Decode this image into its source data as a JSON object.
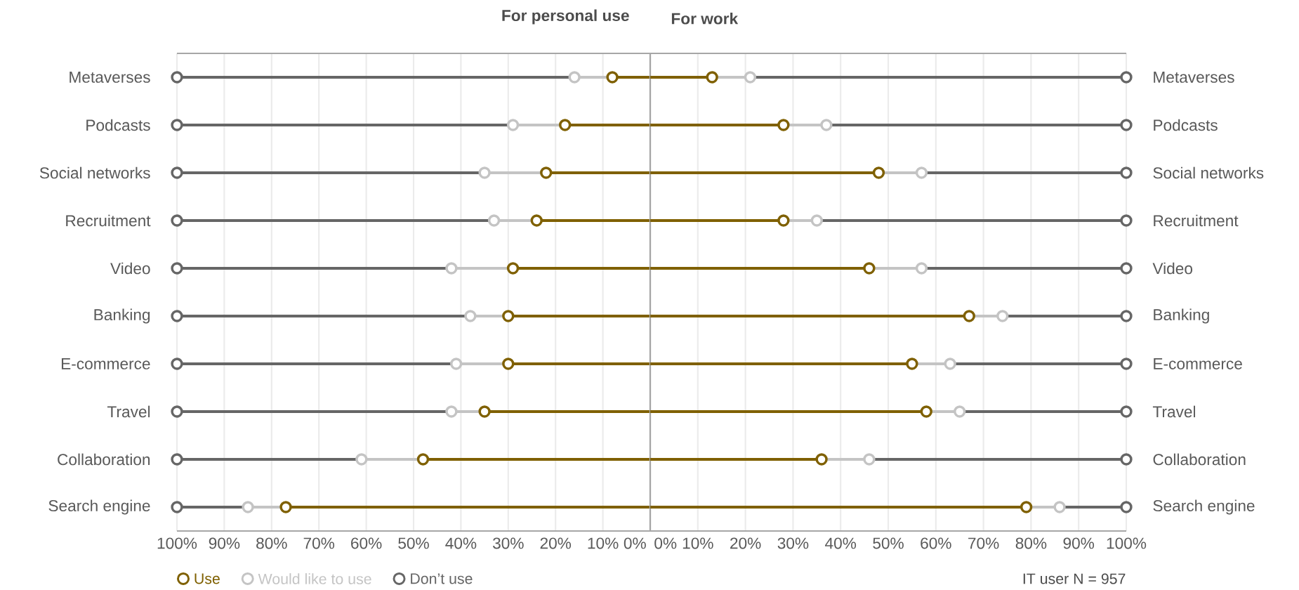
{
  "chart_data": [
    {
      "type": "scatter",
      "orientation": "horizontal",
      "title": "For personal use",
      "categories": [
        "Metaverses",
        "Podcasts",
        "Social networks",
        "Recruitment",
        "Video",
        "Banking",
        "E-commerce",
        "Travel",
        "Collaboration",
        "Search engine"
      ],
      "series": [
        {
          "name": "Use",
          "color": "#7f6000",
          "values": [
            8,
            18,
            22,
            24,
            29,
            30,
            30,
            35,
            48,
            77
          ]
        },
        {
          "name": "Would like to use",
          "color": "#c4c4c4",
          "values": [
            16,
            29,
            35,
            33,
            42,
            38,
            41,
            42,
            61,
            85
          ]
        },
        {
          "name": "Don’t use",
          "color": "#666666",
          "values": [
            100,
            100,
            100,
            100,
            100,
            100,
            100,
            100,
            100,
            100
          ]
        }
      ],
      "xlim": [
        100,
        0
      ],
      "xticks": [
        {
          "value": 100,
          "label": "100%"
        },
        {
          "value": 90,
          "label": "90%"
        },
        {
          "value": 80,
          "label": "80%"
        },
        {
          "value": 70,
          "label": "70%"
        },
        {
          "value": 60,
          "label": "60%"
        },
        {
          "value": 50,
          "label": "50%"
        },
        {
          "value": 40,
          "label": "40%"
        },
        {
          "value": 30,
          "label": "30%"
        },
        {
          "value": 20,
          "label": "20%"
        },
        {
          "value": 10,
          "label": "10%"
        },
        {
          "value": 0,
          "label": "0%"
        }
      ],
      "grid": "x",
      "marker": "circle",
      "legend": "bottom left"
    },
    {
      "type": "scatter",
      "orientation": "horizontal",
      "title": "For work",
      "categories": [
        "Metaverses",
        "Podcasts",
        "Social networks",
        "Recruitment",
        "Video",
        "Banking",
        "E-commerce",
        "Travel",
        "Collaboration",
        "Search engine"
      ],
      "series": [
        {
          "color": "#7f6000",
          "values": [
            13,
            28,
            48,
            28,
            46,
            67,
            55,
            58,
            36,
            79
          ]
        },
        {
          "color": "#c4c4c4",
          "values": [
            21,
            37,
            57,
            35,
            57,
            74,
            63,
            65,
            46,
            86
          ]
        },
        {
          "color": "#666666",
          "values": [
            100,
            100,
            100,
            100,
            100,
            100,
            100,
            100,
            100,
            100
          ]
        }
      ],
      "xlim": [
        0,
        100
      ],
      "xticks": [
        {
          "value": 0,
          "label": "0%"
        },
        {
          "value": 10,
          "label": "10%"
        },
        {
          "value": 20,
          "label": "20%"
        },
        {
          "value": 30,
          "label": "30%"
        },
        {
          "value": 40,
          "label": "40%"
        },
        {
          "value": 50,
          "label": "50%"
        },
        {
          "value": 60,
          "label": "60%"
        },
        {
          "value": 70,
          "label": "70%"
        },
        {
          "value": 80,
          "label": "80%"
        },
        {
          "value": 90,
          "label": "90%"
        },
        {
          "value": 100,
          "label": "100%"
        }
      ],
      "grid": "x",
      "marker": "circle",
      "annotations": [
        "IT user N = 957"
      ]
    }
  ]
}
